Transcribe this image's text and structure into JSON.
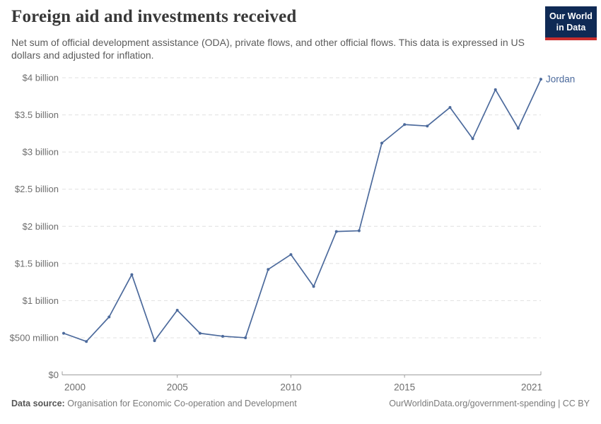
{
  "header": {
    "title": "Foreign aid and investments received",
    "subtitle": "Net sum of official development assistance (ODA), private flows, and other official flows. This data is expressed in US dollars and adjusted for inflation.",
    "logo": {
      "line1": "Our World",
      "line2": "in Data",
      "bg_color": "#0f2a55",
      "stripe_color": "#c82d2d"
    }
  },
  "chart_data": {
    "type": "line",
    "title": "Foreign aid and investments received",
    "unit": "US dollars (billions)",
    "x": [
      2000,
      2001,
      2002,
      2003,
      2004,
      2005,
      2006,
      2007,
      2008,
      2009,
      2010,
      2011,
      2012,
      2013,
      2014,
      2015,
      2016,
      2017,
      2018,
      2019,
      2020,
      2021
    ],
    "series": [
      {
        "name": "Jordan",
        "values": [
          0.56,
          0.45,
          0.78,
          1.35,
          0.46,
          0.87,
          0.56,
          0.52,
          0.5,
          1.42,
          1.62,
          1.19,
          1.93,
          1.94,
          3.12,
          3.37,
          3.35,
          3.6,
          3.18,
          3.84,
          3.32,
          3.98
        ],
        "color": "#4c6a9c"
      }
    ],
    "xlim": [
      2000,
      2021
    ],
    "ylim": [
      0,
      4
    ],
    "xticks": [
      2000,
      2005,
      2010,
      2015,
      2021
    ],
    "yticks": [
      {
        "value": 0,
        "label": "$0"
      },
      {
        "value": 0.5,
        "label": "$500 million"
      },
      {
        "value": 1,
        "label": "$1 billion"
      },
      {
        "value": 1.5,
        "label": "$1.5 billion"
      },
      {
        "value": 2,
        "label": "$2 billion"
      },
      {
        "value": 2.5,
        "label": "$2.5 billion"
      },
      {
        "value": 3,
        "label": "$3 billion"
      },
      {
        "value": 3.5,
        "label": "$3.5 billion"
      },
      {
        "value": 4,
        "label": "$4 billion"
      }
    ],
    "grid": true,
    "legend_position": "end-of-line-label",
    "grid_color": "#e0e0e0",
    "axis_color": "#9e9e9e",
    "tick_label_color": "#6e6e6e"
  },
  "footer": {
    "datasource_label": "Data source:",
    "datasource": "Organisation for Economic Co-operation and Development",
    "link": "OurWorldinData.org/government-spending | CC BY"
  }
}
